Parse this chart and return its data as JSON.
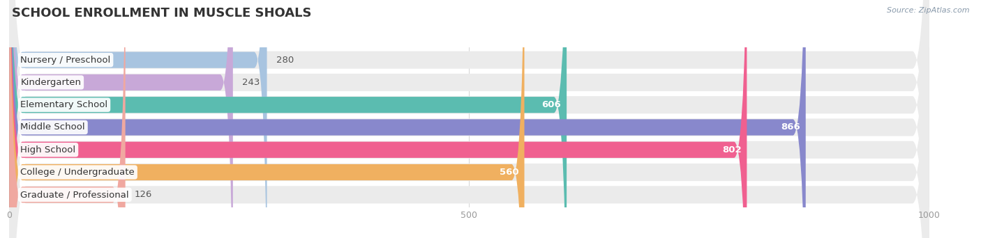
{
  "title": "SCHOOL ENROLLMENT IN MUSCLE SHOALS",
  "source": "Source: ZipAtlas.com",
  "categories": [
    "Nursery / Preschool",
    "Kindergarten",
    "Elementary School",
    "Middle School",
    "High School",
    "College / Undergraduate",
    "Graduate / Professional"
  ],
  "values": [
    280,
    243,
    606,
    866,
    802,
    560,
    126
  ],
  "bar_colors": [
    "#a8c4e0",
    "#c8a8d8",
    "#5bbcb0",
    "#8888cc",
    "#f06090",
    "#f0b060",
    "#f0a8a0"
  ],
  "row_bg_color": "#ebebeb",
  "xlim_max": 1000,
  "xticks": [
    0,
    500,
    1000
  ],
  "background_color": "#ffffff",
  "title_fontsize": 13,
  "label_fontsize": 9.5,
  "value_fontsize": 9.5,
  "bar_height": 0.72
}
